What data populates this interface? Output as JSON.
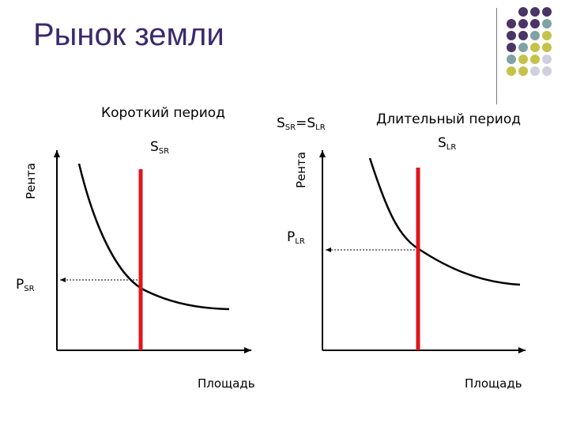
{
  "title": "Рынок земли",
  "decoration": {
    "colors": {
      "purple": "#4a3566",
      "teal": "#7fa2a6",
      "olive": "#c5c24a",
      "lavender": "#cfcfe0"
    },
    "dots": [
      [
        "",
        "purple",
        "purple",
        "purple"
      ],
      [
        "purple",
        "purple",
        "purple",
        "teal"
      ],
      [
        "purple",
        "purple",
        "teal",
        "olive"
      ],
      [
        "purple",
        "teal",
        "olive",
        "olive"
      ],
      [
        "teal",
        "olive",
        "olive",
        "lavender"
      ],
      [
        "olive",
        "olive",
        "lavender",
        "lavender"
      ],
      [
        "",
        "",
        "",
        ""
      ]
    ]
  },
  "short_run": {
    "heading": "Короткий период",
    "y_axis_label": "Рента",
    "x_axis_label": "Площадь",
    "supply_label": {
      "main": "S",
      "sub": "SR"
    },
    "price_label": {
      "main": "P",
      "sub": "SR"
    }
  },
  "long_run": {
    "heading": "Длительный период",
    "y_axis_label": "Рента",
    "x_axis_label": "Площадь",
    "supply_label": {
      "main": "S",
      "sub": "LR"
    },
    "price_label": {
      "main": "P",
      "sub": "LR"
    }
  },
  "equality_label": {
    "left_main": "S",
    "left_sub": "SR",
    "eq": "=S",
    "right_sub": "LR"
  },
  "colors": {
    "supply_line": "#e0141b",
    "curve": "#000000",
    "axis": "#000000",
    "title": "#3b2a6b"
  }
}
